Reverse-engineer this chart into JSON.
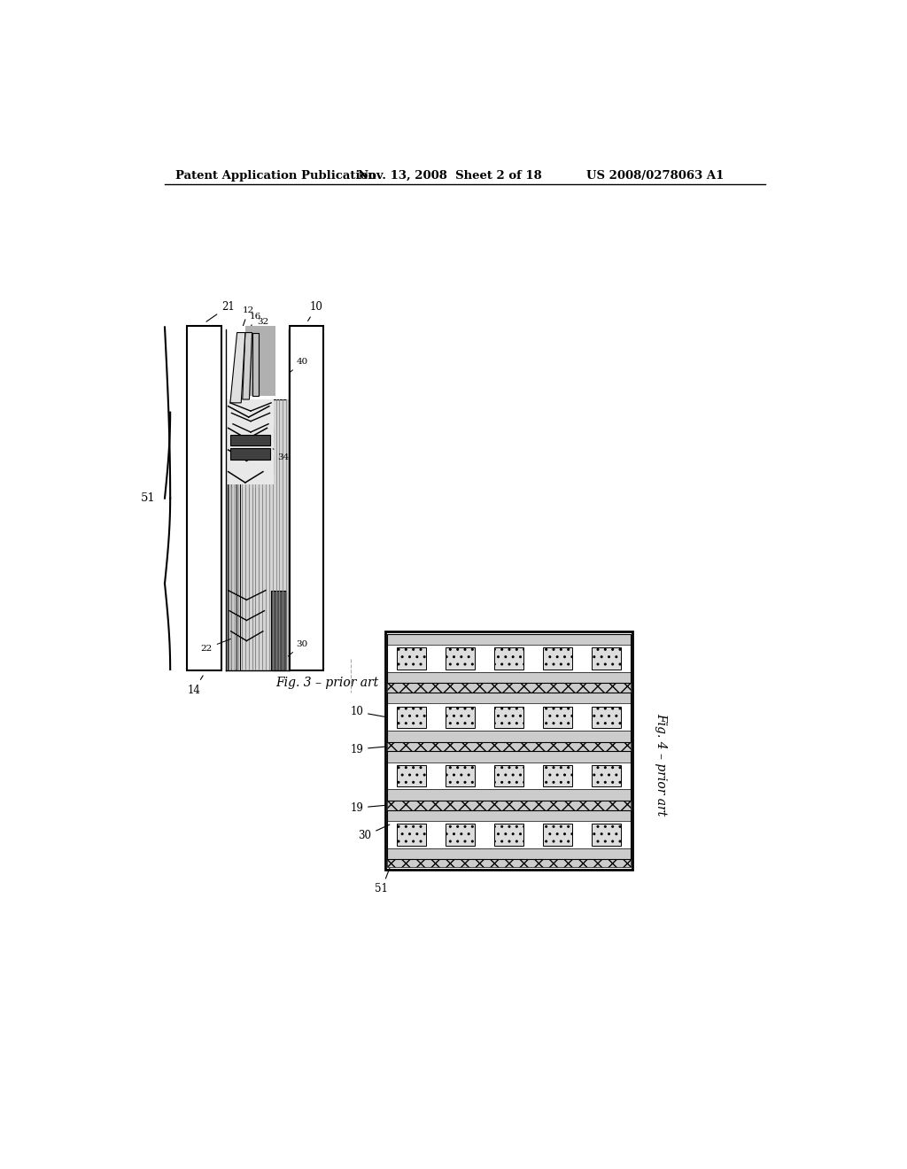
{
  "bg_color": "#ffffff",
  "header_left": "Patent Application Publication",
  "header_mid": "Nov. 13, 2008  Sheet 2 of 18",
  "header_right": "US 2008/0278063 A1",
  "fig3_caption": "Fig. 3 – prior art",
  "fig4_caption": "Fig. 4 – prior art"
}
